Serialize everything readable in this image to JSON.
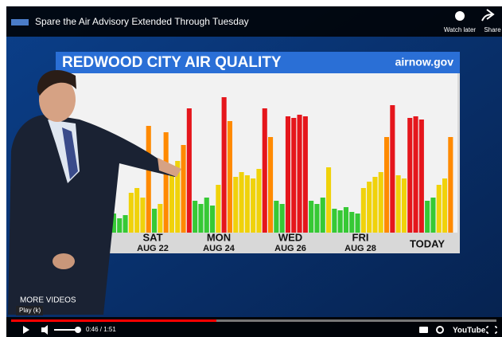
{
  "top_bar": {
    "title": "Spare the Air Advisory Extended Through Tuesday",
    "watch_later": "Watch later",
    "share": "Share"
  },
  "video": {
    "chart": {
      "title": "REDWOOD CITY AIR QUALITY",
      "source": "airnow.gov",
      "colors": {
        "g": "#36c935",
        "y": "#f0d20a",
        "o": "#ff8a00",
        "r": "#e5161c"
      },
      "bars": [
        {
          "v": 10,
          "c": "g"
        },
        {
          "v": 12,
          "c": "g"
        },
        {
          "v": 9,
          "c": "g"
        },
        {
          "v": 11,
          "c": "g"
        },
        {
          "v": 25,
          "c": "y"
        },
        {
          "v": 28,
          "c": "y"
        },
        {
          "v": 22,
          "c": "y"
        },
        {
          "v": 67,
          "c": "o"
        },
        {
          "v": 15,
          "c": "g"
        },
        {
          "v": 18,
          "c": "y"
        },
        {
          "v": 63,
          "c": "o"
        },
        {
          "v": 40,
          "c": "y"
        },
        {
          "v": 45,
          "c": "y"
        },
        {
          "v": 55,
          "c": "o"
        },
        {
          "v": 78,
          "c": "r"
        },
        {
          "v": 20,
          "c": "g"
        },
        {
          "v": 18,
          "c": "g"
        },
        {
          "v": 22,
          "c": "g"
        },
        {
          "v": 17,
          "c": "g"
        },
        {
          "v": 30,
          "c": "y"
        },
        {
          "v": 85,
          "c": "r"
        },
        {
          "v": 70,
          "c": "o"
        },
        {
          "v": 35,
          "c": "y"
        },
        {
          "v": 38,
          "c": "y"
        },
        {
          "v": 36,
          "c": "y"
        },
        {
          "v": 34,
          "c": "y"
        },
        {
          "v": 40,
          "c": "y"
        },
        {
          "v": 78,
          "c": "r"
        },
        {
          "v": 60,
          "c": "o"
        },
        {
          "v": 20,
          "c": "g"
        },
        {
          "v": 18,
          "c": "g"
        },
        {
          "v": 73,
          "c": "r"
        },
        {
          "v": 72,
          "c": "r"
        },
        {
          "v": 74,
          "c": "r"
        },
        {
          "v": 73,
          "c": "r"
        },
        {
          "v": 20,
          "c": "g"
        },
        {
          "v": 18,
          "c": "g"
        },
        {
          "v": 22,
          "c": "g"
        },
        {
          "v": 41,
          "c": "y"
        },
        {
          "v": 15,
          "c": "g"
        },
        {
          "v": 14,
          "c": "g"
        },
        {
          "v": 16,
          "c": "g"
        },
        {
          "v": 13,
          "c": "g"
        },
        {
          "v": 12,
          "c": "g"
        },
        {
          "v": 28,
          "c": "y"
        },
        {
          "v": 32,
          "c": "y"
        },
        {
          "v": 35,
          "c": "y"
        },
        {
          "v": 38,
          "c": "y"
        },
        {
          "v": 60,
          "c": "o"
        },
        {
          "v": 80,
          "c": "r"
        },
        {
          "v": 36,
          "c": "y"
        },
        {
          "v": 34,
          "c": "y"
        },
        {
          "v": 72,
          "c": "r"
        },
        {
          "v": 73,
          "c": "r"
        },
        {
          "v": 71,
          "c": "r"
        },
        {
          "v": 20,
          "c": "g"
        },
        {
          "v": 22,
          "c": "g"
        },
        {
          "v": 30,
          "c": "y"
        },
        {
          "v": 34,
          "c": "y"
        },
        {
          "v": 60,
          "c": "o"
        }
      ],
      "x_labels": [
        {
          "day": "SAT",
          "date": "AUG 22"
        },
        {
          "day": "MON",
          "date": "AUG 24"
        },
        {
          "day": "WED",
          "date": "AUG 26"
        },
        {
          "day": "FRI",
          "date": "AUG 28"
        },
        {
          "day": "TODAY"
        }
      ]
    },
    "more_videos": "MORE VIDEOS",
    "play_hint": "Play (k)"
  },
  "controls": {
    "time": "0:46 / 1:51",
    "logo": "YouTube"
  }
}
